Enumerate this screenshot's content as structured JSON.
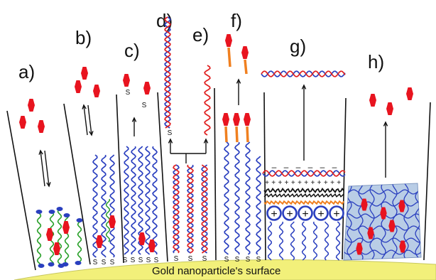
{
  "diagram": {
    "surface_label": "Gold nanoparticle's surface",
    "panels": [
      {
        "id": "a",
        "label": "a)"
      },
      {
        "id": "b",
        "label": "b)"
      },
      {
        "id": "c",
        "label": "c)"
      },
      {
        "id": "d",
        "label": "d)"
      },
      {
        "id": "e",
        "label": "e)"
      },
      {
        "id": "f",
        "label": "f)"
      },
      {
        "id": "g",
        "label": "g)"
      },
      {
        "id": "h",
        "label": "h)"
      }
    ],
    "thiol_symbol": "S",
    "charge_symbol": "+",
    "negative_symbol": "–"
  },
  "colors": {
    "drug": "#e8141f",
    "strand_blue": "#2a3fbf",
    "strand_red": "#e02020",
    "ligand_green": "#2aa02a",
    "linker_orange": "#f08020",
    "gold": "#f2f07a",
    "hydrogel": "#b9cde6"
  }
}
